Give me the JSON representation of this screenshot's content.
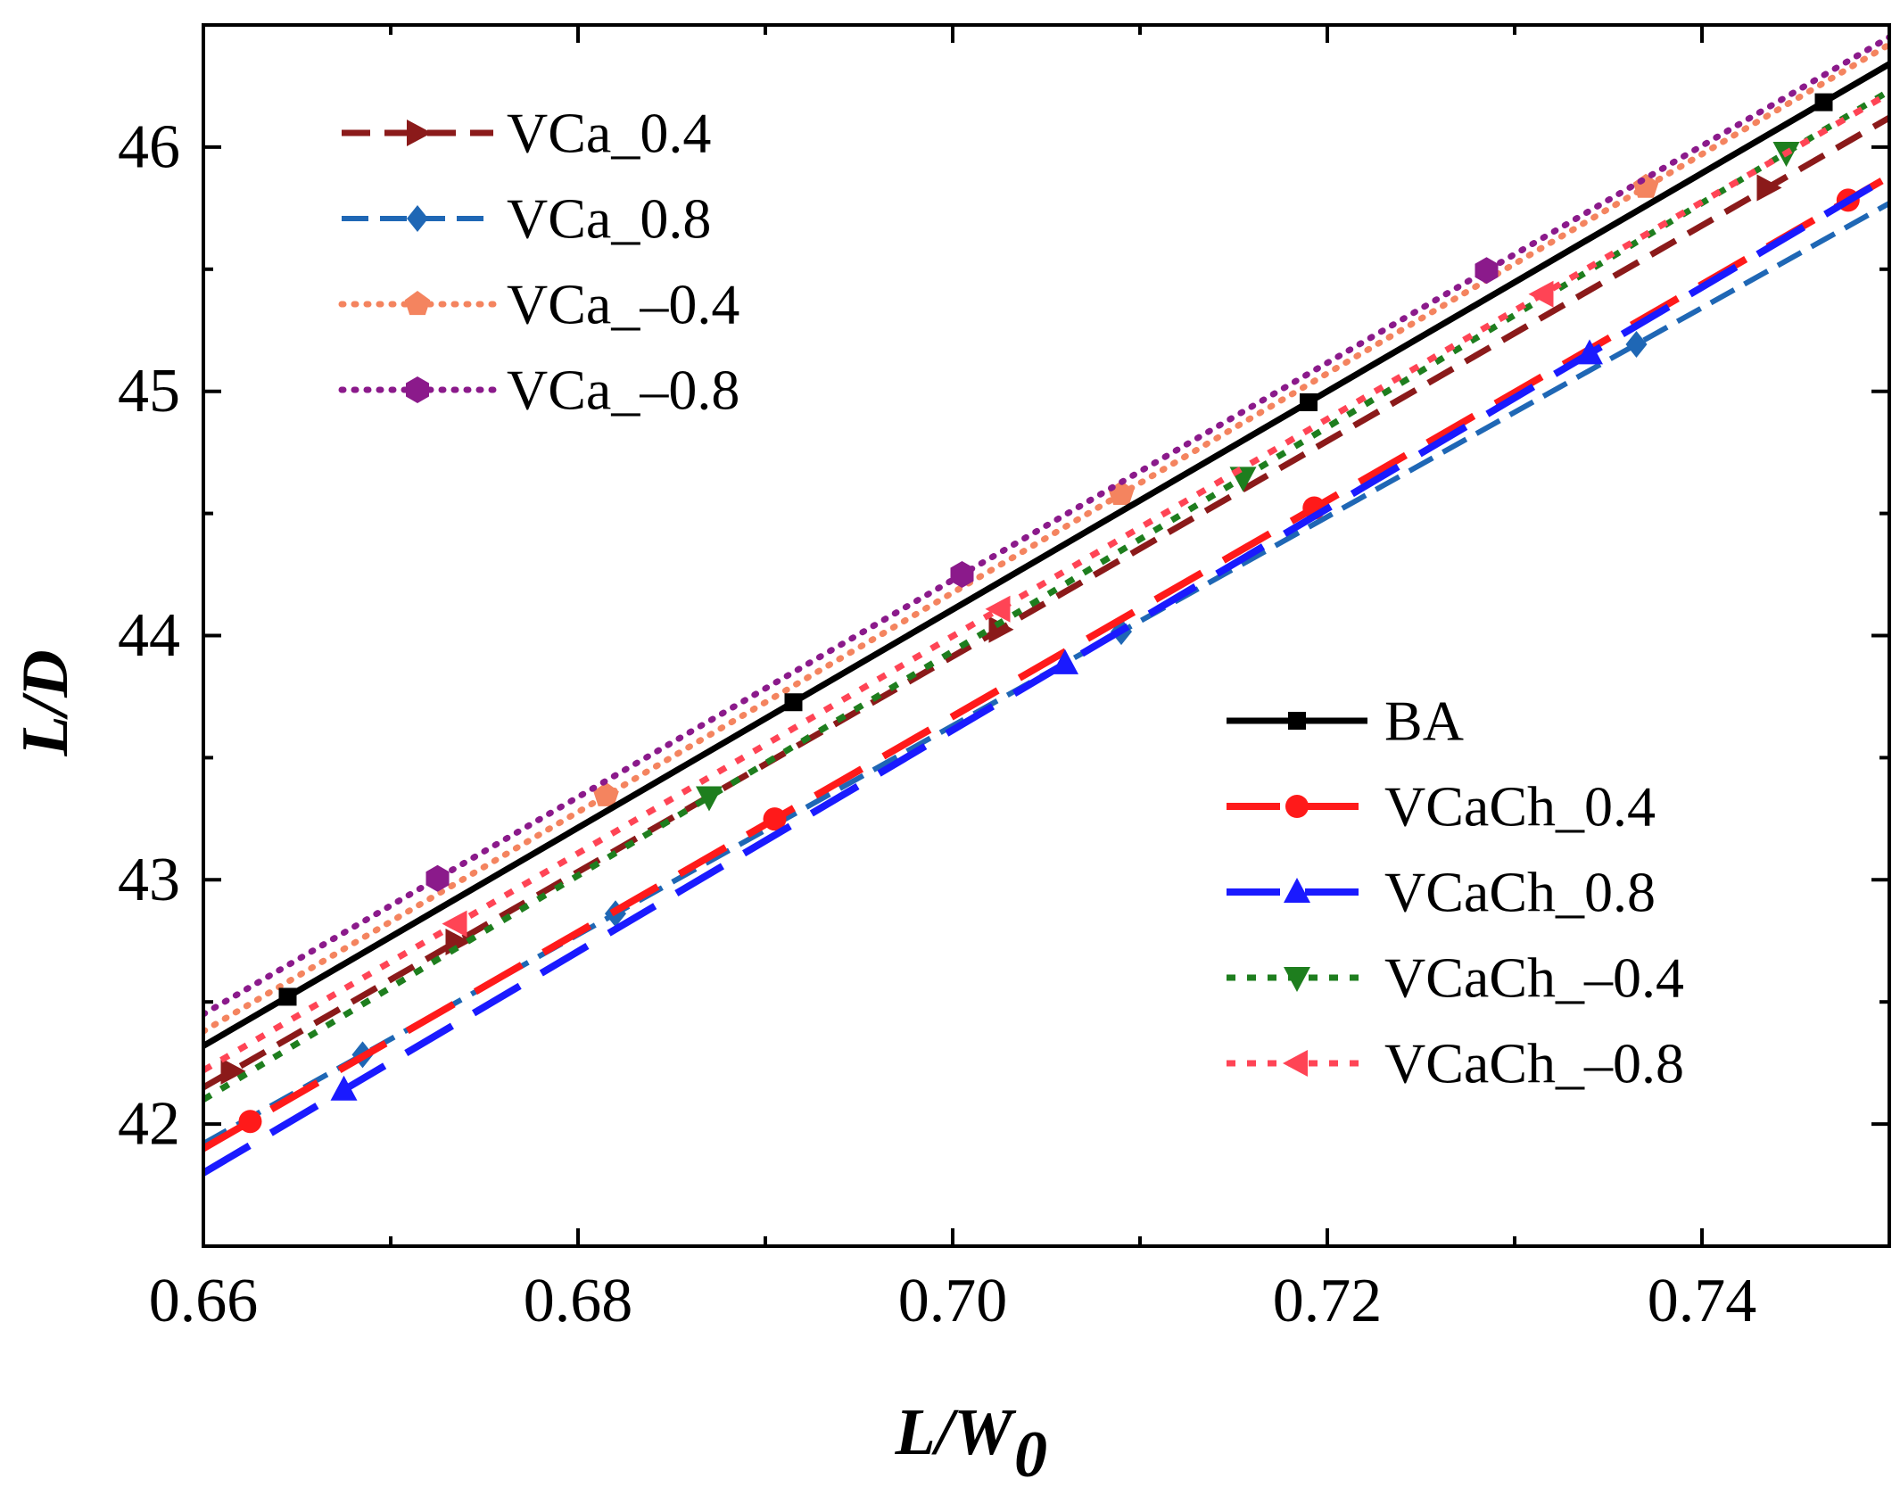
{
  "chart_data": {
    "type": "line",
    "xlabel": "L/W",
    "xlabel_subscript": "0",
    "ylabel": "L/D",
    "xlim": [
      0.66,
      0.75
    ],
    "ylim": [
      41.5,
      46.5
    ],
    "x_ticks": [
      0.66,
      0.68,
      0.7,
      0.72,
      0.74
    ],
    "x_tick_labels": [
      "0.66",
      "0.68",
      "0.70",
      "0.72",
      "0.74"
    ],
    "y_ticks": [
      42,
      43,
      44,
      45,
      46
    ],
    "y_tick_labels": [
      "42",
      "43",
      "44",
      "45",
      "46"
    ],
    "grid": false,
    "legend_groups": [
      {
        "placement": "top-left",
        "entries": [
          "VCa_0.4",
          "VCa_0.8",
          "VCa_–0.4",
          "VCa_–0.8"
        ]
      },
      {
        "placement": "bottom-right",
        "entries": [
          "BA",
          "VCaCh_0.4",
          "VCaCh_0.8",
          "VCaCh_–0.4",
          "VCaCh_–0.8"
        ]
      }
    ],
    "series": [
      {
        "name": "VCa_0.4",
        "color": "#8B1A1A",
        "dash": "32,16",
        "width": 7,
        "marker": "tri-right",
        "x": [
          0.66,
          0.75
        ],
        "y": [
          42.15,
          46.12
        ],
        "marker_x": [
          0.6615,
          0.6735,
          0.7025,
          0.7435
        ]
      },
      {
        "name": "VCa_0.8",
        "color": "#1F67B5",
        "dash": "30,13",
        "width": 6,
        "marker": "diamond",
        "x": [
          0.66,
          0.75
        ],
        "y": [
          41.92,
          45.77
        ],
        "marker_x": [
          0.6685,
          0.682,
          0.709,
          0.7365
        ]
      },
      {
        "name": "VCa_–0.4",
        "color": "#F4845F",
        "dash": "2,12",
        "width": 7,
        "marker": "pentagon",
        "x": [
          0.66,
          0.75
        ],
        "y": [
          42.38,
          46.42
        ],
        "marker_x": [
          0.6815,
          0.709,
          0.737
        ]
      },
      {
        "name": "VCa_–0.8",
        "color": "#8B1A8B",
        "dash": "2,12",
        "width": 7,
        "marker": "hexagon",
        "x": [
          0.66,
          0.75
        ],
        "y": [
          42.45,
          46.45
        ],
        "marker_x": [
          0.6725,
          0.7005,
          0.7285
        ]
      },
      {
        "name": "BA",
        "color": "#000000",
        "dash": "",
        "width": 7,
        "marker": "square",
        "x": [
          0.66,
          0.75
        ],
        "y": [
          42.32,
          46.34
        ],
        "marker_x": [
          0.6645,
          0.6915,
          0.719,
          0.7465
        ]
      },
      {
        "name": "VCaCh_0.4",
        "color": "#FF1A1A",
        "dash": "60,28",
        "width": 8,
        "marker": "circle",
        "x": [
          0.66,
          0.75
        ],
        "y": [
          41.9,
          45.88
        ],
        "marker_x": [
          0.6625,
          0.6905,
          0.7193,
          0.7478
        ]
      },
      {
        "name": "VCaCh_0.8",
        "color": "#1A1AFF",
        "dash": "60,28",
        "width": 8,
        "marker": "tri-up",
        "x": [
          0.66,
          0.75
        ],
        "y": [
          41.8,
          45.88
        ],
        "marker_x": [
          0.6675,
          0.706,
          0.734
        ]
      },
      {
        "name": "VCaCh_–0.4",
        "color": "#1E7E1E",
        "dash": "10,13",
        "width": 7,
        "marker": "tri-down",
        "x": [
          0.66,
          0.75
        ],
        "y": [
          42.1,
          46.23
        ],
        "marker_x": [
          0.687,
          0.7155,
          0.7445
        ]
      },
      {
        "name": "VCaCh_–0.8",
        "color": "#FF4455",
        "dash": "10,13",
        "width": 7,
        "marker": "tri-left",
        "x": [
          0.66,
          0.75
        ],
        "y": [
          42.22,
          46.22
        ],
        "marker_x": [
          0.6735,
          0.7025,
          0.7315
        ]
      }
    ]
  }
}
